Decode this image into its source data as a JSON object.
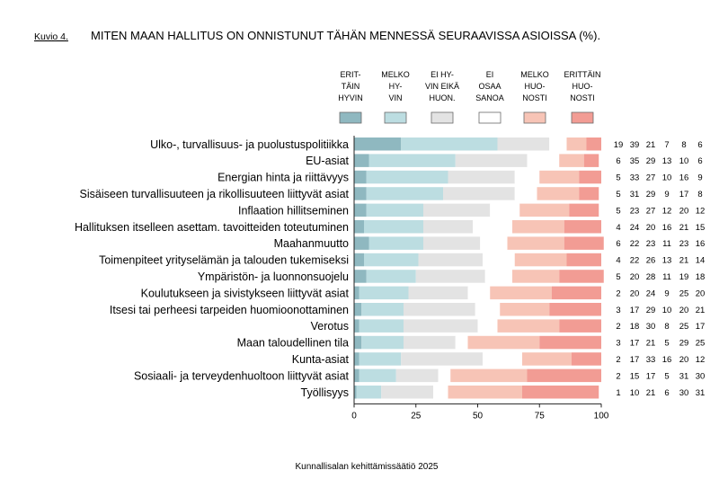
{
  "figure_label": "Kuvio 4.",
  "source": "Kunnallisalan kehittämissäätiö 2025",
  "chart_data": {
    "type": "bar",
    "stacked": true,
    "orientation": "horizontal",
    "title": "MITEN MAAN HALLITUS ON ONNISTUNUT TÄHÄN MENNESSÄ SEURAAVISSA ASIOISSA (%).",
    "xlabel": "",
    "ylabel": "",
    "xlim": [
      0,
      100
    ],
    "xticks": [
      0,
      25,
      50,
      75,
      100
    ],
    "grid": false,
    "legend_position": "top",
    "categories": [
      "Ulko-, turvallisuus- ja puolustuspolitiikka",
      "EU-asiat",
      "Energian hinta ja riittävyys",
      "Sisäiseen turvallisuuteen ja rikollisuuteen liittyvät asiat",
      "Inflaation hillitseminen",
      "Hallituksen itselleen asettam. tavoitteiden toteutuminen",
      "Maahanmuutto",
      "Toimenpiteet yrityselämän ja talouden tukemiseksi",
      "Ympäristön- ja luonnonsuojelu",
      "Koulutukseen ja sivistykseen liittyvät asiat",
      "Itsesi tai perheesi tarpeiden huomioonottaminen",
      "Verotus",
      "Maan taloudellinen tila",
      "Kunta-asiat",
      "Sosiaali- ja terveydenhuoltoon liittyvät asiat",
      "Työllisyys"
    ],
    "series": [
      {
        "name": "ERIT-TÄIN HYVIN",
        "legend_lines": [
          "ERIT-",
          "TÄIN",
          "HYVIN"
        ],
        "color": "#8fb8c0",
        "values": [
          19,
          6,
          5,
          5,
          5,
          4,
          6,
          4,
          5,
          2,
          3,
          2,
          3,
          2,
          2,
          1
        ]
      },
      {
        "name": "MELKO HYVIN",
        "legend_lines": [
          "MELKO",
          "HY-",
          "VIN"
        ],
        "color": "#bcdde1",
        "values": [
          39,
          35,
          33,
          31,
          23,
          24,
          22,
          22,
          20,
          20,
          17,
          18,
          17,
          17,
          15,
          10
        ]
      },
      {
        "name": "EI HYVIN EIKÄ HUON.",
        "legend_lines": [
          "EI HY-",
          "VIN EIKÄ",
          "HUON."
        ],
        "color": "#e3e3e3",
        "values": [
          21,
          29,
          27,
          29,
          27,
          20,
          23,
          26,
          28,
          24,
          29,
          30,
          21,
          33,
          17,
          21
        ]
      },
      {
        "name": "EI OSAA SANOA",
        "legend_lines": [
          "EI",
          "OSAA",
          "SANOA"
        ],
        "color": "#ffffff",
        "values": [
          7,
          13,
          10,
          9,
          12,
          16,
          11,
          13,
          11,
          9,
          10,
          8,
          5,
          16,
          5,
          6
        ]
      },
      {
        "name": "MELKO HUONOSTI",
        "legend_lines": [
          "MELKO",
          "HUO-",
          "NOSTI"
        ],
        "color": "#f7c4b6",
        "values": [
          8,
          10,
          16,
          17,
          20,
          21,
          23,
          21,
          19,
          25,
          20,
          25,
          29,
          20,
          31,
          30
        ]
      },
      {
        "name": "ERITTÄIN HUONOSTI",
        "legend_lines": [
          "ERITTÄIN",
          "HUO-",
          "NOSTI"
        ],
        "color": "#f29c94",
        "values": [
          6,
          6,
          9,
          8,
          12,
          15,
          16,
          14,
          18,
          20,
          21,
          17,
          25,
          12,
          30,
          31
        ]
      }
    ]
  }
}
